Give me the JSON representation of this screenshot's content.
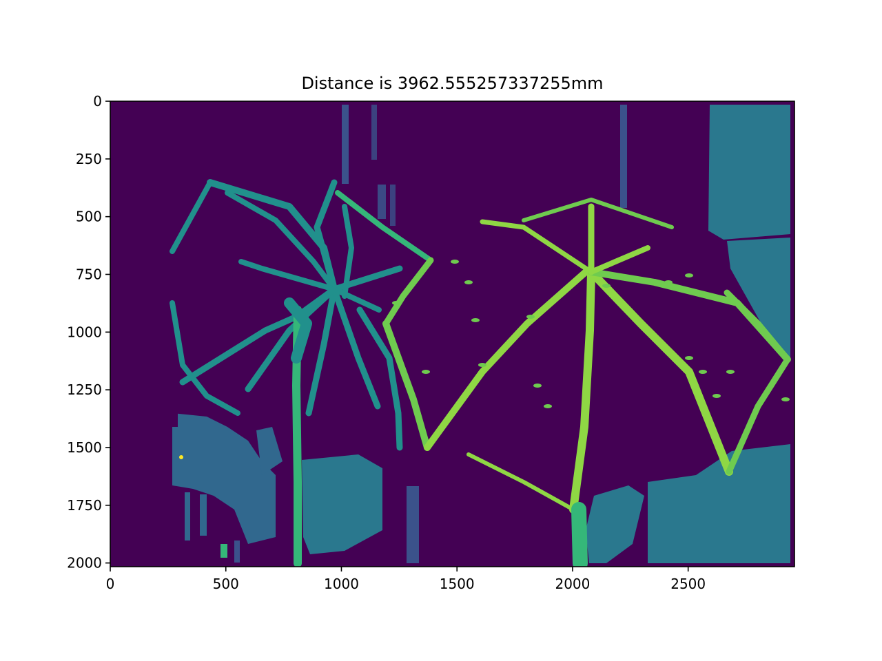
{
  "chart_data": {
    "type": "heatmap",
    "title": "Distance is 3962.555257337255mm",
    "xlabel": "",
    "ylabel": "",
    "xlim": [
      0,
      2960
    ],
    "ylim": [
      2016,
      0
    ],
    "x_ticks": [
      0,
      500,
      1000,
      1500,
      2000,
      2500
    ],
    "y_ticks": [
      0,
      250,
      500,
      750,
      1000,
      1250,
      1500,
      1750,
      2000
    ],
    "grid": false,
    "colormap": "viridis",
    "colors": {
      "background": "#440154",
      "left_umbrella": "#21908c",
      "right_umbrella": "#6fcb4f",
      "right_umbrella_bright": "#8fd744",
      "far_objects": "#3b528b",
      "mid_objects": "#2a788e",
      "near_pole": "#35b779",
      "hot_spot": "#fde725"
    }
  }
}
